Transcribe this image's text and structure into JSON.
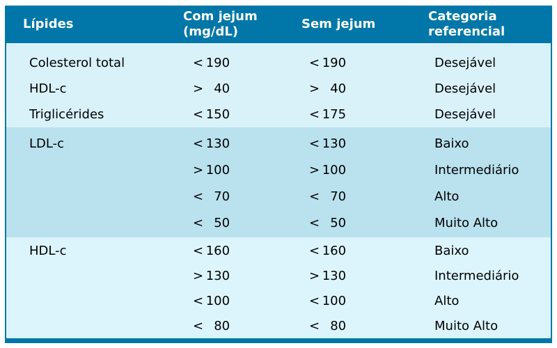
{
  "colors": {
    "header_bg": "#0077A8",
    "header_text": "#ffffff",
    "section_light": "#D9F2FA",
    "section_mid": "#BAE1EE",
    "section_light2": "#DCF5FD",
    "body_text": "#000000",
    "page_bg": "#ffffff"
  },
  "table": {
    "headers": [
      {
        "line1": "Lípides",
        "line2": ""
      },
      {
        "line1": "Com jejum",
        "line2": "(mg/dL)"
      },
      {
        "line1": "Sem jejum",
        "line2": ""
      },
      {
        "line1": "Categoria",
        "line2": "referencial"
      }
    ],
    "sections": [
      {
        "rows": [
          {
            "lipid": "Colesterol total",
            "com_cmp": "<",
            "com_val": "190",
            "sem_cmp": "<",
            "sem_val": "190",
            "cat": "Desejável"
          },
          {
            "lipid": "HDL-c",
            "com_cmp": ">",
            "com_val": "40",
            "sem_cmp": ">",
            "sem_val": "40",
            "cat": "Desejável"
          },
          {
            "lipid": "Triglicérides",
            "com_cmp": "<",
            "com_val": "150",
            "sem_cmp": "<",
            "sem_val": "175",
            "cat": "Desejável"
          }
        ]
      },
      {
        "rows": [
          {
            "lipid": "LDL-c",
            "com_cmp": "<",
            "com_val": "130",
            "sem_cmp": "<",
            "sem_val": "130",
            "cat": "Baixo"
          },
          {
            "lipid": "",
            "com_cmp": ">",
            "com_val": "100",
            "sem_cmp": ">",
            "sem_val": "100",
            "cat": "Intermediário"
          },
          {
            "lipid": "",
            "com_cmp": "<",
            "com_val": "70",
            "sem_cmp": "<",
            "sem_val": "70",
            "cat": "Alto"
          },
          {
            "lipid": "",
            "com_cmp": "<",
            "com_val": "50",
            "sem_cmp": "<",
            "sem_val": "50",
            "cat": "Muito Alto"
          }
        ]
      },
      {
        "rows": [
          {
            "lipid": "HDL-c",
            "com_cmp": "<",
            "com_val": "160",
            "sem_cmp": "<",
            "sem_val": "160",
            "cat": "Baixo"
          },
          {
            "lipid": "",
            "com_cmp": ">",
            "com_val": "130",
            "sem_cmp": ">",
            "sem_val": "130",
            "cat": "Intermediário"
          },
          {
            "lipid": "",
            "com_cmp": "<",
            "com_val": "100",
            "sem_cmp": "<",
            "sem_val": "100",
            "cat": "Alto"
          },
          {
            "lipid": "",
            "com_cmp": "<",
            "com_val": "80",
            "sem_cmp": "<",
            "sem_val": "80",
            "cat": "Muito Alto"
          }
        ]
      }
    ]
  }
}
